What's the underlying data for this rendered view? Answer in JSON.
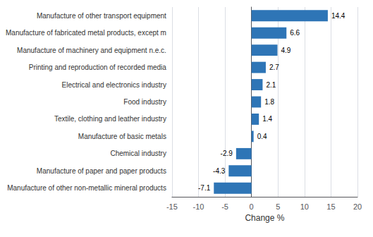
{
  "chart_data": {
    "type": "bar",
    "orientation": "horizontal",
    "categories": [
      "Manufacture of other transport equipment",
      "Manufacture of fabricated metal products, except m",
      "Manufacture of machinery and equipment n.e.c.",
      "Printing and reproduction of recorded media",
      "Electrical and electronics industry",
      "Food industry",
      "Textile, clothing and leather industry",
      "Manufacture of basic metals",
      "Chemical industry",
      "Manufacture of paper and paper products",
      "Manufacture of other non-metallic mineral products"
    ],
    "values": [
      14.4,
      6.6,
      4.9,
      2.7,
      2.1,
      1.8,
      1.4,
      0.4,
      -2.9,
      -4.3,
      -7.1
    ],
    "color": "#2E75B6",
    "xlabel": "Change %",
    "xlim": [
      -15,
      20
    ],
    "xticks": [
      -15,
      -10,
      -5,
      0,
      5,
      10,
      15,
      20
    ],
    "grid": true,
    "data_labels": true
  }
}
